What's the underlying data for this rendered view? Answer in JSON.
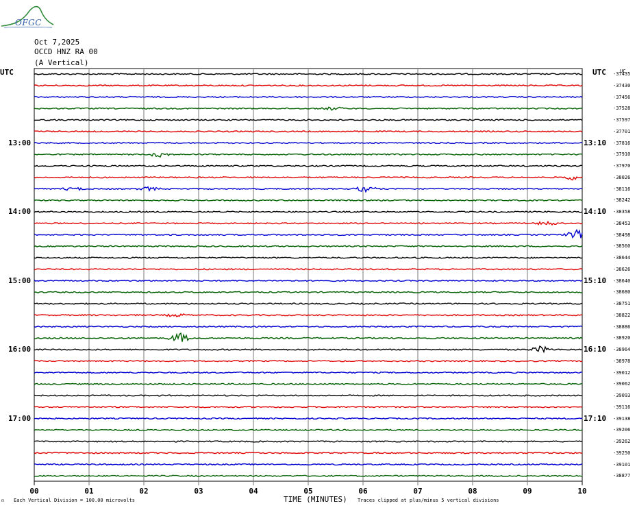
{
  "header": {
    "logo_text": "OFGC",
    "date": "Oct 7,2025",
    "station": "OCCD HNZ RA 00",
    "component": "(A Vertical)",
    "utc_left": "UTC",
    "utc_right": "UTC",
    "corner_mark": "UC"
  },
  "chart_data": {
    "type": "line",
    "title": "",
    "xlabel": "TIME (MINUTES)",
    "ylabel": "",
    "xlim": [
      0,
      10
    ],
    "x_ticks": [
      "00",
      "01",
      "02",
      "03",
      "04",
      "05",
      "06",
      "07",
      "08",
      "09",
      "10"
    ],
    "trace_colors": [
      "#000000",
      "#e00000",
      "#0000d0",
      "#006000"
    ],
    "grid": true,
    "left_time_labels": [
      "13:00",
      "14:00",
      "15:00",
      "16:00",
      "17:00"
    ],
    "right_time_labels": [
      "13:10",
      "14:10",
      "15:10",
      "16:10",
      "17:10"
    ],
    "time_label_rows": [
      6,
      12,
      18,
      24,
      30
    ],
    "trace_offsets": [
      "-37435",
      "-37430",
      "-37456",
      "-37528",
      "-37597",
      "-37701",
      "-37816",
      "-37910",
      "-37970",
      "-38026",
      "-38116",
      "-38242",
      "-38358",
      "-38453",
      "-38498",
      "-38560",
      "-38644",
      "-38626",
      "-38640",
      "-38680",
      "-38751",
      "-38822",
      "-38886",
      "-38920",
      "-38964",
      "-38978",
      "-39012",
      "-39062",
      "-39093",
      "-39116",
      "-39138",
      "-39206",
      "-39262",
      "-39250",
      "-39101",
      "-38877"
    ],
    "events": [
      {
        "trace": 3,
        "minute": 5.45,
        "amp": 0.5
      },
      {
        "trace": 7,
        "minute": 2.3,
        "amp": 0.9
      },
      {
        "trace": 10,
        "minute": 0.7,
        "amp": 0.5
      },
      {
        "trace": 10,
        "minute": 2.1,
        "amp": 0.6
      },
      {
        "trace": 10,
        "minute": 6.05,
        "amp": 1.0
      },
      {
        "trace": 9,
        "minute": 9.85,
        "amp": 0.9
      },
      {
        "trace": 13,
        "minute": 9.35,
        "amp": 0.7
      },
      {
        "trace": 14,
        "minute": 9.9,
        "amp": 1.6
      },
      {
        "trace": 23,
        "minute": 2.65,
        "amp": 1.8
      },
      {
        "trace": 24,
        "minute": 9.25,
        "amp": 1.1
      },
      {
        "trace": 21,
        "minute": 2.6,
        "amp": 0.5
      }
    ]
  },
  "footer": {
    "scale_note": "Each Vertical Division =  100.00 microvolts",
    "clip_note": "Traces clipped at plus/minus 5 vertical divisions"
  }
}
